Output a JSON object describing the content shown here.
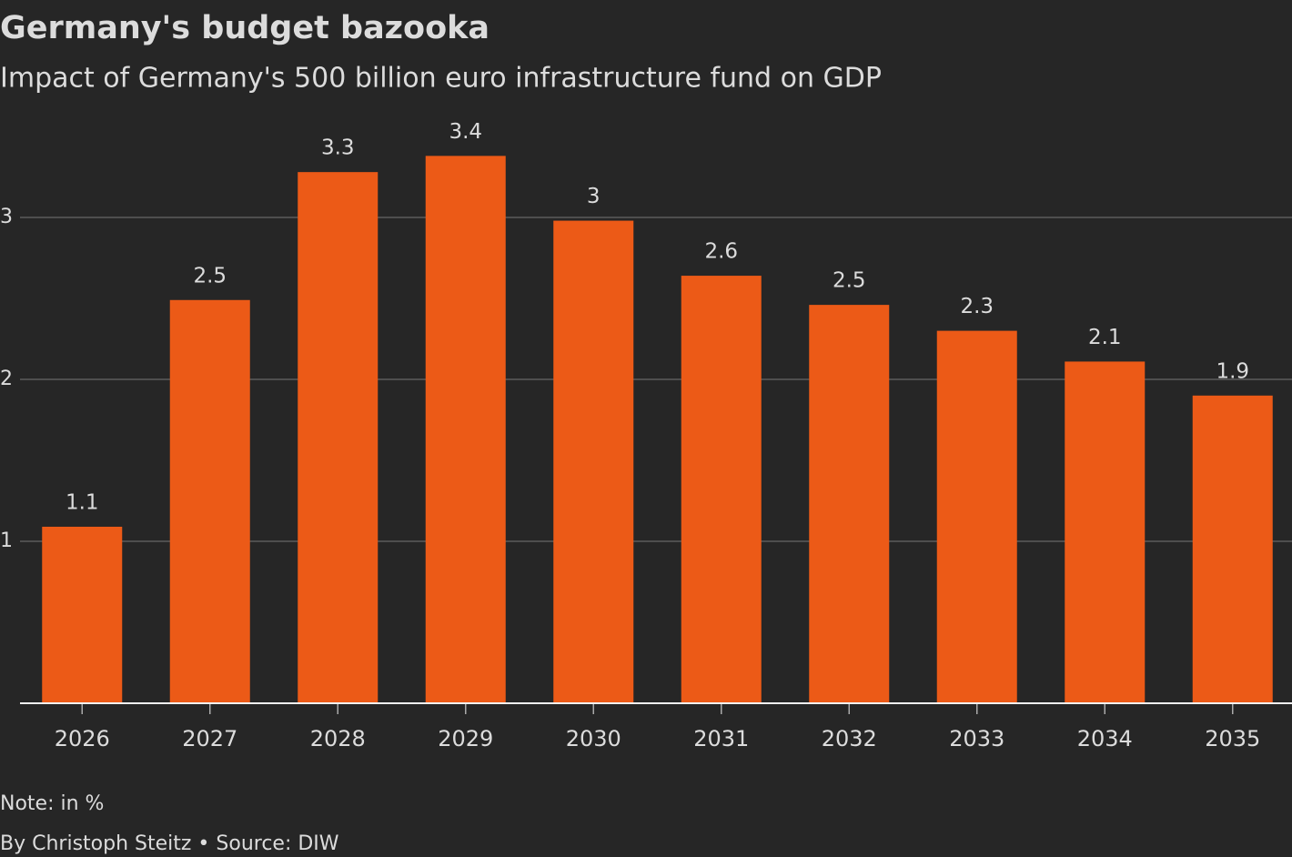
{
  "chart_data": {
    "type": "bar",
    "title": "Germany's budget bazooka",
    "subtitle": "Impact of Germany's 500 billion euro infrastructure fund on GDP",
    "categories": [
      "2026",
      "2027",
      "2028",
      "2029",
      "2030",
      "2031",
      "2032",
      "2033",
      "2034",
      "2035"
    ],
    "values": [
      1.09,
      2.49,
      3.28,
      3.38,
      2.98,
      2.64,
      2.46,
      2.3,
      2.11,
      1.9
    ],
    "value_labels": [
      "1.1",
      "2.5",
      "3.3",
      "3.4",
      "3",
      "2.6",
      "2.5",
      "2.3",
      "2.1",
      "1.9"
    ],
    "color": "#ec5a17",
    "ylim": [
      0,
      3.5
    ],
    "yticks": [
      1,
      2,
      3
    ],
    "grid": true,
    "note": "Note: in %",
    "source": "By Christoph Steitz • Source: DIW"
  }
}
